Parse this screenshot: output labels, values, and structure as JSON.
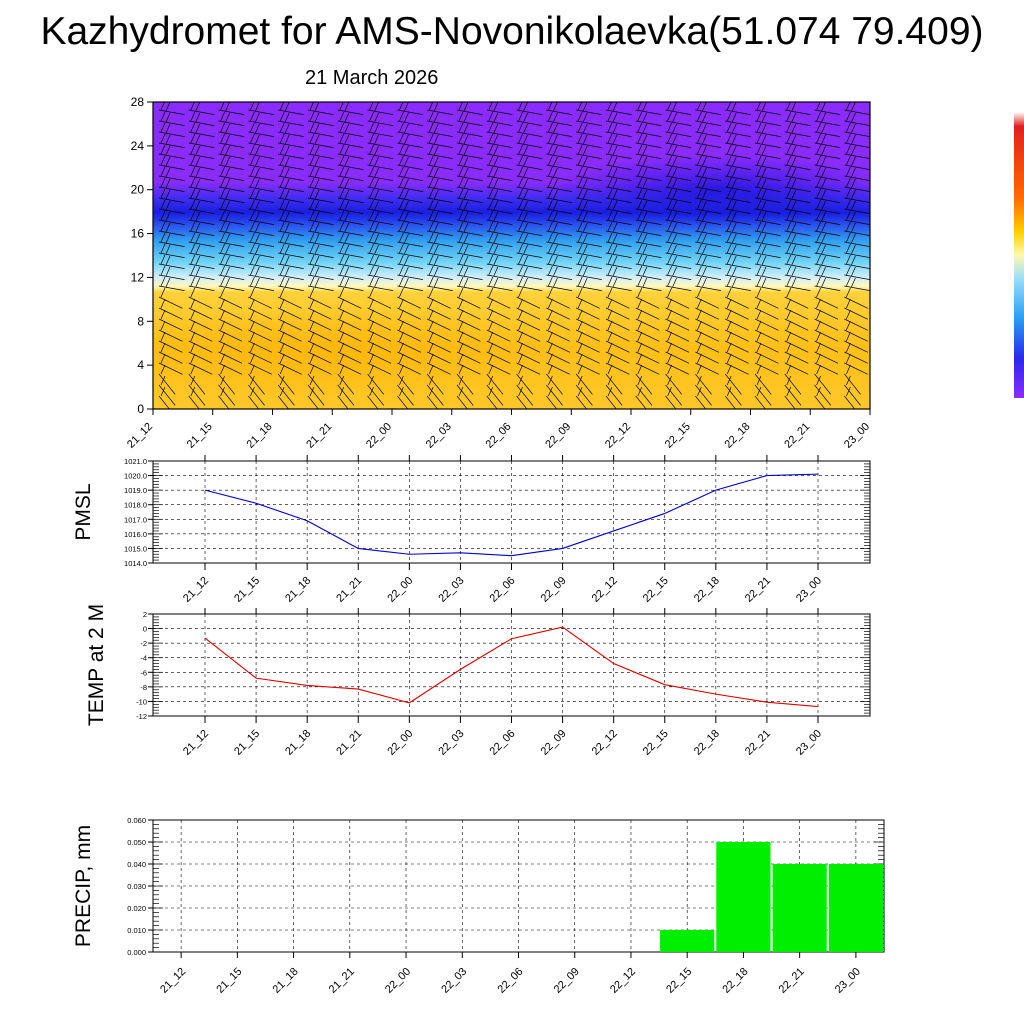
{
  "header": {
    "title": "Kazhydromet for AMS-Novonikolaevka(51.074 79.409)",
    "date": "21 March 2026"
  },
  "time_labels": [
    "21_12",
    "21_15",
    "21_18",
    "21_21",
    "22_00",
    "22_03",
    "22_06",
    "22_09",
    "22_12",
    "22_15",
    "22_18",
    "22_21",
    "23_00"
  ],
  "colors": {
    "pmsl_line": "#0000cc",
    "temp_line": "#dd0000",
    "precip_bar": "#00ee00",
    "cold_purple": "#8a2cff",
    "deep_blue": "#2222ee",
    "warm_orange": "#ffc21a"
  },
  "chart_data": [
    {
      "type": "heatmap",
      "name": "cross-section",
      "title": "",
      "x": [
        "21_12",
        "21_15",
        "21_18",
        "21_21",
        "22_00",
        "22_03",
        "22_06",
        "22_09",
        "22_12",
        "22_15",
        "22_18",
        "22_21",
        "23_00"
      ],
      "ylim": [
        0,
        28
      ],
      "yticks": [
        0,
        4,
        8,
        12,
        16,
        20,
        24,
        28
      ],
      "grid": false
    },
    {
      "type": "line",
      "name": "pmsl",
      "ylabel": "PMSL",
      "categories": [
        "21_12",
        "21_15",
        "21_18",
        "21_21",
        "22_00",
        "22_03",
        "22_06",
        "22_09",
        "22_12",
        "22_15",
        "22_18",
        "22_21",
        "23_00"
      ],
      "values": [
        1019.0,
        1018.1,
        1016.9,
        1015.0,
        1014.6,
        1014.7,
        1014.5,
        1015.0,
        1016.2,
        1017.4,
        1019.0,
        1020.0,
        1020.1
      ],
      "ylim": [
        1014.0,
        1021.0
      ],
      "yticks": [
        "1014.0",
        "1015.0",
        "1016.0",
        "1017.0",
        "1018.0",
        "1019.0",
        "1020.0",
        "1021.0"
      ],
      "grid": true
    },
    {
      "type": "line",
      "name": "temp",
      "ylabel": "TEMP at 2 M",
      "categories": [
        "21_12",
        "21_15",
        "21_18",
        "21_21",
        "22_00",
        "22_03",
        "22_06",
        "22_09",
        "22_12",
        "22_15",
        "22_18",
        "22_21",
        "23_00"
      ],
      "values": [
        -1.3,
        -6.8,
        -7.8,
        -8.3,
        -10.2,
        -5.6,
        -1.4,
        0.2,
        -4.8,
        -7.7,
        -9.0,
        -10.1,
        -10.7
      ],
      "ylim": [
        -12,
        2
      ],
      "yticks": [
        "-12",
        "-10",
        "-8",
        "-6",
        "-4",
        "-2",
        "0",
        "2"
      ],
      "grid": true
    },
    {
      "type": "bar",
      "name": "precip",
      "ylabel": "PRECIP, mm",
      "categories": [
        "21_12",
        "21_15",
        "21_18",
        "21_21",
        "22_00",
        "22_03",
        "22_06",
        "22_09",
        "22_12",
        "22_15",
        "22_18",
        "22_21",
        "23_00"
      ],
      "values": [
        0,
        0,
        0,
        0,
        0,
        0,
        0,
        0,
        0,
        0.01,
        0.05,
        0.04,
        0.04
      ],
      "ylim": [
        0,
        0.06
      ],
      "yticks": [
        "0.000",
        "0.010",
        "0.020",
        "0.030",
        "0.040",
        "0.050",
        "0.060"
      ],
      "grid": true
    }
  ]
}
